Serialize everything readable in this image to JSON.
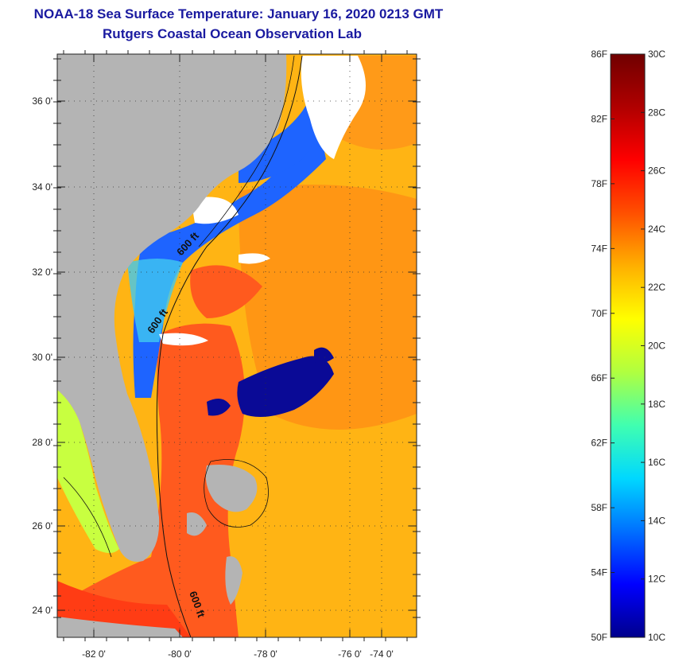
{
  "header": {
    "title": "NOAA-18 Sea Surface Temperature:  January 16, 2020 0213 GMT",
    "subtitle": "Rutgers Coastal Ocean Observation Lab"
  },
  "map": {
    "lat_labels": [
      "36 0'",
      "34 0'",
      "32 0'",
      "30 0'",
      "28 0'",
      "26 0'",
      "24 0'"
    ],
    "lon_labels": [
      "-82 0'",
      "-80 0'",
      "-78 0'",
      "-76 0'",
      "-74 0'"
    ],
    "contour_labels": [
      "600 ft",
      "600 ft",
      "600 ft"
    ],
    "colors": {
      "land": "#b4b4b4",
      "cloud": "#ffffff",
      "warm": "#ff5a1e",
      "mid": "#ffb414",
      "cool": "#1e64ff",
      "cold": "#0a0a96"
    }
  },
  "colorbar": {
    "f_labels": [
      "86F",
      "82F",
      "78F",
      "74F",
      "70F",
      "66F",
      "62F",
      "58F",
      "54F",
      "50F"
    ],
    "c_labels": [
      "30C",
      "28C",
      "26C",
      "24C",
      "22C",
      "20C",
      "18C",
      "16C",
      "14C",
      "12C",
      "10C"
    ],
    "stops": [
      "#00008c",
      "#0000ff",
      "#0070ff",
      "#00d8ff",
      "#40ffb0",
      "#b0ff40",
      "#ffff00",
      "#ffb000",
      "#ff5000",
      "#ff0000",
      "#b00000",
      "#700000"
    ]
  }
}
